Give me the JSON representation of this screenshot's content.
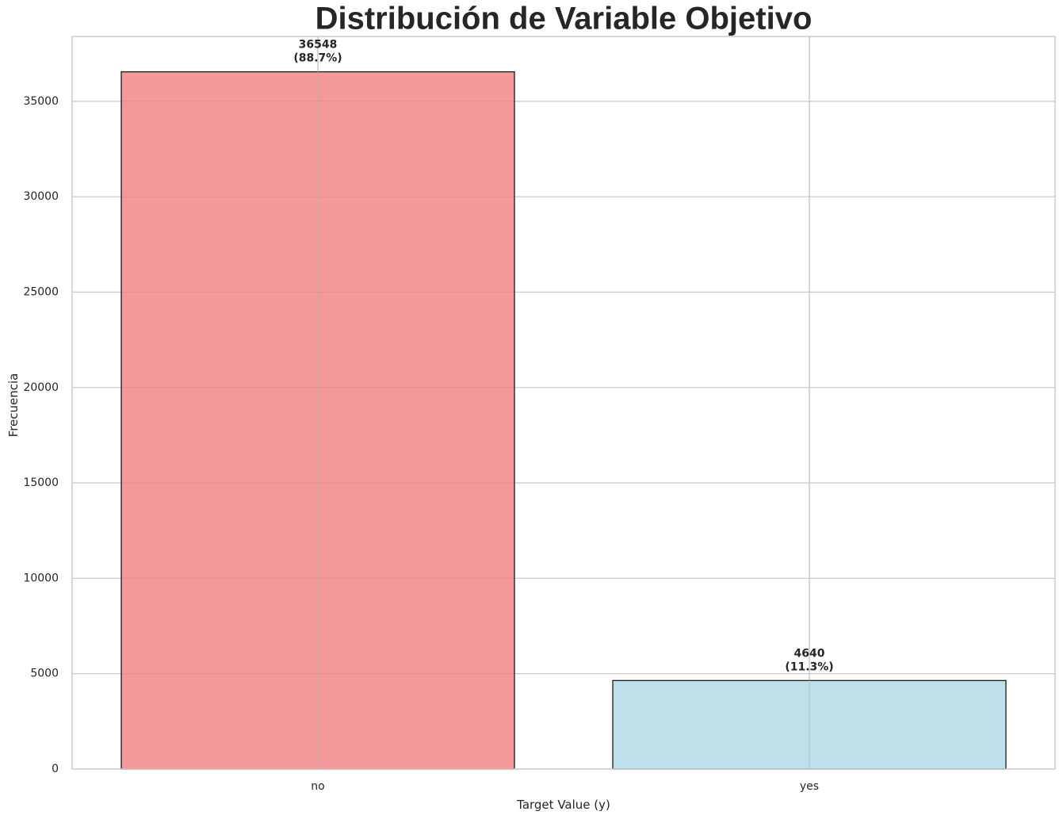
{
  "chart_data": {
    "type": "bar",
    "title": "Distribución de Variable Objetivo",
    "xlabel": "Target Value (y)",
    "ylabel": "Frecuencia",
    "categories": [
      "no",
      "yes"
    ],
    "values": [
      36548,
      4640
    ],
    "data_labels": [
      [
        "36548",
        "(88.7%)"
      ],
      [
        "4640",
        "(11.3%)"
      ]
    ],
    "colors": [
      "#f08080",
      "#add8e6"
    ],
    "bar_alpha": 0.8,
    "ylim": [
      0,
      38400
    ],
    "yticks": [
      0,
      5000,
      10000,
      15000,
      20000,
      25000,
      30000,
      35000
    ],
    "ytick_labels": [
      "0",
      "5000",
      "10000",
      "15000",
      "20000",
      "25000",
      "30000",
      "35000"
    ],
    "grid": true,
    "legend": false
  }
}
